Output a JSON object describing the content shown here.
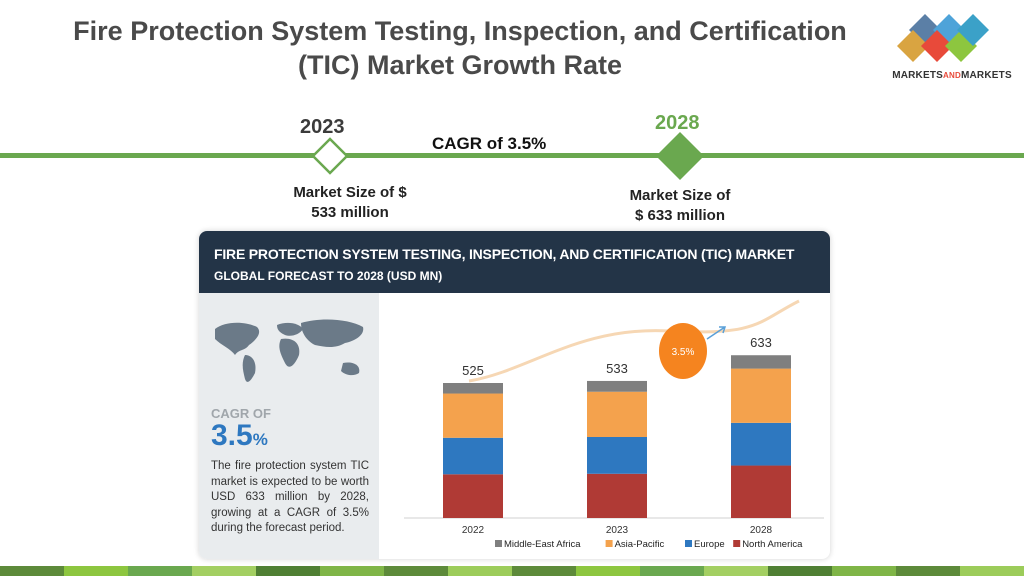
{
  "header": {
    "title_line1": "Fire Protection System Testing, Inspection, and Certification",
    "title_line2": "(TIC) Market Growth Rate",
    "brand_left": "MARKETS",
    "brand_mid": "AND",
    "brand_right": "MARKETS"
  },
  "timeline": {
    "start_year": "2023",
    "end_year": "2028",
    "cagr_label": "CAGR of 3.5%",
    "start_size_line1": "Market Size of $",
    "start_size_line2": "533 million",
    "end_size_line1": "Market Size of",
    "end_size_line2": "$ 633 million",
    "accent_color": "#6aa84f"
  },
  "card": {
    "title": "FIRE PROTECTION SYSTEM TESTING, INSPECTION, AND CERTIFICATION (TIC) MARKET",
    "subtitle": "GLOBAL FORECAST TO 2028 (USD MN)",
    "cagr_small": "CAGR OF",
    "cagr_value": "3.5",
    "cagr_pct": "%",
    "description": "The fire protection system TIC market is expected to be worth USD 633 million by 2028, growing at a CAGR of 3.5% during the forecast period."
  },
  "chart_data": {
    "type": "bar",
    "stacked": true,
    "categories": [
      "2022",
      "2023",
      "2028"
    ],
    "totals": [
      525,
      533,
      633
    ],
    "growth_badge": "3.5%",
    "series": [
      {
        "name": "North America",
        "color": "#b03a35",
        "values": [
          170,
          172,
          204
        ]
      },
      {
        "name": "Europe",
        "color": "#2e78c0",
        "values": [
          142,
          143,
          166
        ]
      },
      {
        "name": "Asia-Pacific",
        "color": "#f4a24d",
        "values": [
          172,
          176,
          211
        ]
      },
      {
        "name": "Middle-East Africa",
        "color": "#7f7f7f",
        "values": [
          41,
          42,
          52
        ]
      }
    ],
    "legend_order": [
      "Middle-East Africa",
      "Asia-Pacific",
      "Europe",
      "North America"
    ],
    "ylim": [
      0,
      700
    ],
    "legend_position": "bottom"
  }
}
